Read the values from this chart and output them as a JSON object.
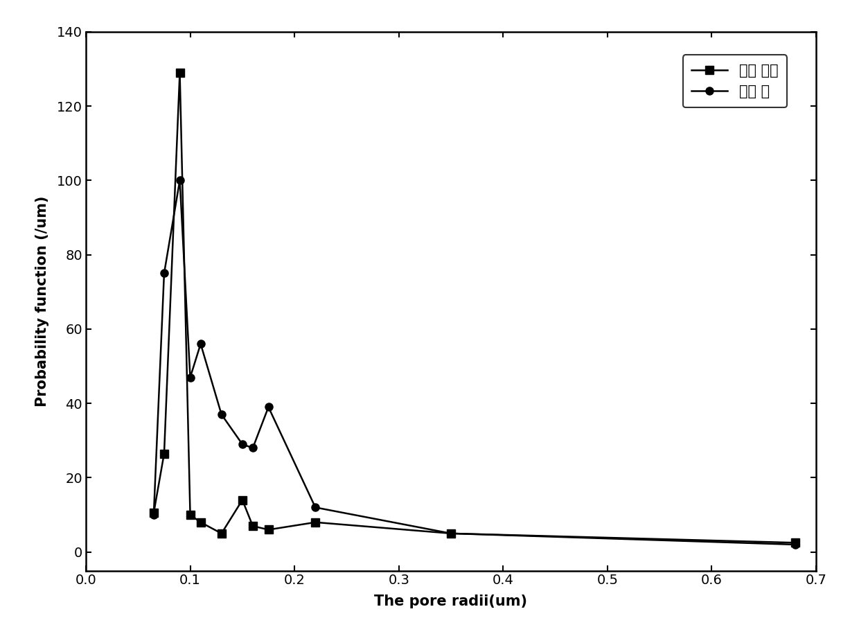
{
  "series1_label": "实施 例二",
  "series2_label": "对比 例",
  "series1_x": [
    0.065,
    0.075,
    0.09,
    0.1,
    0.11,
    0.13,
    0.15,
    0.16,
    0.175,
    0.22,
    0.35,
    0.68
  ],
  "series1_y": [
    10.5,
    26.5,
    129,
    10,
    8,
    5,
    14,
    7,
    6,
    8,
    5,
    2.5
  ],
  "series2_x": [
    0.065,
    0.075,
    0.09,
    0.1,
    0.11,
    0.13,
    0.15,
    0.16,
    0.175,
    0.22,
    0.35,
    0.68
  ],
  "series2_y": [
    10,
    75,
    100,
    47,
    56,
    37,
    29,
    28,
    39,
    12,
    5,
    2
  ],
  "xlabel": "The pore radii(um)",
  "ylabel": "Probability function (/um)",
  "xlim": [
    0.0,
    0.7
  ],
  "ylim": [
    -5,
    140
  ],
  "xticks": [
    0.0,
    0.1,
    0.2,
    0.3,
    0.4,
    0.5,
    0.6,
    0.7
  ],
  "yticks": [
    0,
    20,
    40,
    60,
    80,
    100,
    120,
    140
  ],
  "bg_color": "#ffffff",
  "line_color": "#000000",
  "marker_size": 8,
  "line_width": 1.8,
  "label_fontsize": 15,
  "tick_fontsize": 14,
  "legend_fontsize": 15
}
